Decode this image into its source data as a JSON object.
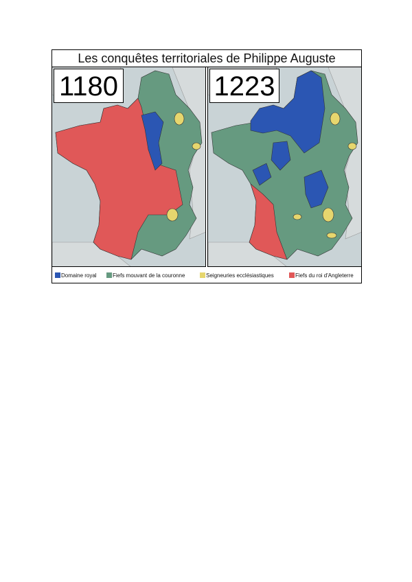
{
  "title": "Les conquêtes territoriales de Philippe Auguste",
  "maps": [
    {
      "year": "1180"
    },
    {
      "year": "1223"
    }
  ],
  "legend": [
    {
      "label": "Domaine royal",
      "color": "#2b56b3"
    },
    {
      "label": "Fiefs mouvant de la couronne",
      "color": "#669a80"
    },
    {
      "label": "Seigneuries ecclésiastiques",
      "color": "#e6d66e"
    },
    {
      "label": "Fiefs du roi d'Angleterre",
      "color": "#e05858"
    }
  ]
}
